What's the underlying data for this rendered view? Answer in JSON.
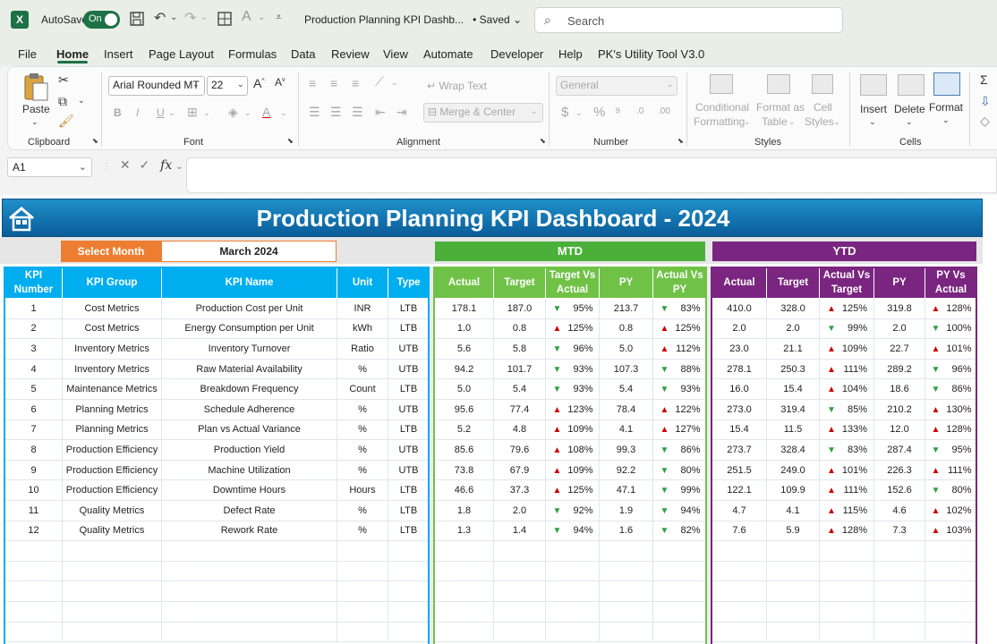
{
  "app": {
    "logo_letter": "X",
    "autosave_label": "AutoSave",
    "autosave_state": "On",
    "doc_title": "Production Planning KPI Dashb...",
    "save_state": "• Saved",
    "search_placeholder": "Search"
  },
  "menu": [
    "File",
    "Home",
    "Insert",
    "Page Layout",
    "Formulas",
    "Data",
    "Review",
    "View",
    "Automate",
    "Developer",
    "Help",
    "PK's Utility Tool V3.0"
  ],
  "ribbon": {
    "paste_label": "Paste",
    "clipboard_label": "Clipboard",
    "font_name": "Arial Rounded MT",
    "font_size": "22",
    "font_label": "Font",
    "wrap_text": "Wrap Text",
    "merge_center": "Merge & Center",
    "alignment_label": "Alignment",
    "number_format": "General",
    "number_label": "Number",
    "conditional_formatting_1": "Conditional",
    "conditional_formatting_2": "Formatting",
    "format_as_table_1": "Format as",
    "format_as_table_2": "Table",
    "cell_styles_1": "Cell",
    "cell_styles_2": "Styles",
    "styles_label": "Styles",
    "insert_label": "Insert",
    "delete_label": "Delete",
    "format_label": "Format",
    "cells_label": "Cells"
  },
  "formula_bar": {
    "name_box": "A1",
    "fx": "fx"
  },
  "dashboard": {
    "title": "Production Planning KPI Dashboard - 2024",
    "select_month_label": "Select Month",
    "select_month_value": "March 2024",
    "mtd_label": "MTD",
    "ytd_label": "YTD",
    "kpi_headers": [
      "KPI Number",
      "KPI Group",
      "KPI Name",
      "Unit",
      "Type"
    ],
    "mtd_headers": [
      "Actual",
      "Target",
      "Target Vs Actual",
      "PY",
      "Actual Vs PY"
    ],
    "ytd_headers": [
      "Actual",
      "Target",
      "Actual Vs Target",
      "PY",
      "PY Vs Actual"
    ],
    "rows": [
      {
        "num": "1",
        "group": "Cost Metrics",
        "name": "Production Cost per Unit",
        "unit": "INR",
        "type": "LTB",
        "mtd": [
          "178.1",
          "187.0",
          "dn",
          "95%",
          "213.7",
          "dn",
          "83%"
        ],
        "ytd": [
          "410.0",
          "328.0",
          "up",
          "125%",
          "319.8",
          "up",
          "128%"
        ]
      },
      {
        "num": "2",
        "group": "Cost Metrics",
        "name": "Energy Consumption per Unit",
        "unit": "kWh",
        "type": "LTB",
        "mtd": [
          "1.0",
          "0.8",
          "up",
          "125%",
          "0.8",
          "up",
          "125%"
        ],
        "ytd": [
          "2.0",
          "2.0",
          "dn",
          "99%",
          "2.0",
          "dn",
          "100%"
        ]
      },
      {
        "num": "3",
        "group": "Inventory Metrics",
        "name": "Inventory Turnover",
        "unit": "Ratio",
        "type": "UTB",
        "mtd": [
          "5.6",
          "5.8",
          "dn",
          "96%",
          "5.0",
          "up",
          "112%"
        ],
        "ytd": [
          "23.0",
          "21.1",
          "up",
          "109%",
          "22.7",
          "up",
          "101%"
        ]
      },
      {
        "num": "4",
        "group": "Inventory Metrics",
        "name": "Raw Material Availability",
        "unit": "%",
        "type": "UTB",
        "mtd": [
          "94.2",
          "101.7",
          "dn",
          "93%",
          "107.3",
          "dn",
          "88%"
        ],
        "ytd": [
          "278.1",
          "250.3",
          "up",
          "111%",
          "289.2",
          "dn",
          "96%"
        ]
      },
      {
        "num": "5",
        "group": "Maintenance Metrics",
        "name": "Breakdown Frequency",
        "unit": "Count",
        "type": "LTB",
        "mtd": [
          "5.0",
          "5.4",
          "dn",
          "93%",
          "5.4",
          "dn",
          "93%"
        ],
        "ytd": [
          "16.0",
          "15.4",
          "up",
          "104%",
          "18.6",
          "dn",
          "86%"
        ]
      },
      {
        "num": "6",
        "group": "Planning Metrics",
        "name": "Schedule Adherence",
        "unit": "%",
        "type": "UTB",
        "mtd": [
          "95.6",
          "77.4",
          "up",
          "123%",
          "78.4",
          "up",
          "122%"
        ],
        "ytd": [
          "273.0",
          "319.4",
          "dn",
          "85%",
          "210.2",
          "up",
          "130%"
        ]
      },
      {
        "num": "7",
        "group": "Planning Metrics",
        "name": "Plan vs Actual Variance",
        "unit": "%",
        "type": "LTB",
        "mtd": [
          "5.2",
          "4.8",
          "up",
          "109%",
          "4.1",
          "up",
          "127%"
        ],
        "ytd": [
          "15.4",
          "11.5",
          "up",
          "133%",
          "12.0",
          "up",
          "128%"
        ]
      },
      {
        "num": "8",
        "group": "Production Efficiency",
        "name": "Production Yield",
        "unit": "%",
        "type": "UTB",
        "mtd": [
          "85.6",
          "79.6",
          "up",
          "108%",
          "99.3",
          "dn",
          "86%"
        ],
        "ytd": [
          "273.7",
          "328.4",
          "dn",
          "83%",
          "287.4",
          "dn",
          "95%"
        ]
      },
      {
        "num": "9",
        "group": "Production Efficiency",
        "name": "Machine Utilization",
        "unit": "%",
        "type": "UTB",
        "mtd": [
          "73.8",
          "67.9",
          "up",
          "109%",
          "92.2",
          "dn",
          "80%"
        ],
        "ytd": [
          "251.5",
          "249.0",
          "up",
          "101%",
          "226.3",
          "up",
          "111%"
        ]
      },
      {
        "num": "10",
        "group": "Production Efficiency",
        "name": "Downtime Hours",
        "unit": "Hours",
        "type": "LTB",
        "mtd": [
          "46.6",
          "37.3",
          "up",
          "125%",
          "47.1",
          "dn",
          "99%"
        ],
        "ytd": [
          "122.1",
          "109.9",
          "up",
          "111%",
          "152.6",
          "dn",
          "80%"
        ]
      },
      {
        "num": "11",
        "group": "Quality Metrics",
        "name": "Defect Rate",
        "unit": "%",
        "type": "LTB",
        "mtd": [
          "1.8",
          "2.0",
          "dn",
          "92%",
          "1.9",
          "dn",
          "94%"
        ],
        "ytd": [
          "4.7",
          "4.1",
          "up",
          "115%",
          "4.6",
          "up",
          "102%"
        ]
      },
      {
        "num": "12",
        "group": "Quality Metrics",
        "name": "Rework Rate",
        "unit": "%",
        "type": "LTB",
        "mtd": [
          "1.3",
          "1.4",
          "dn",
          "94%",
          "1.6",
          "dn",
          "82%"
        ],
        "ytd": [
          "7.6",
          "5.9",
          "up",
          "128%",
          "7.3",
          "up",
          "103%"
        ]
      }
    ],
    "empty_rows": 5
  },
  "colors": {
    "kpi_header": "#00aef0",
    "mtd_header": "#70c247",
    "ytd_header": "#7a2580",
    "select_month": "#ed7d31",
    "banner": "#0a5d99",
    "arrow_up": "#d00000",
    "arrow_down": "#2ea043"
  }
}
